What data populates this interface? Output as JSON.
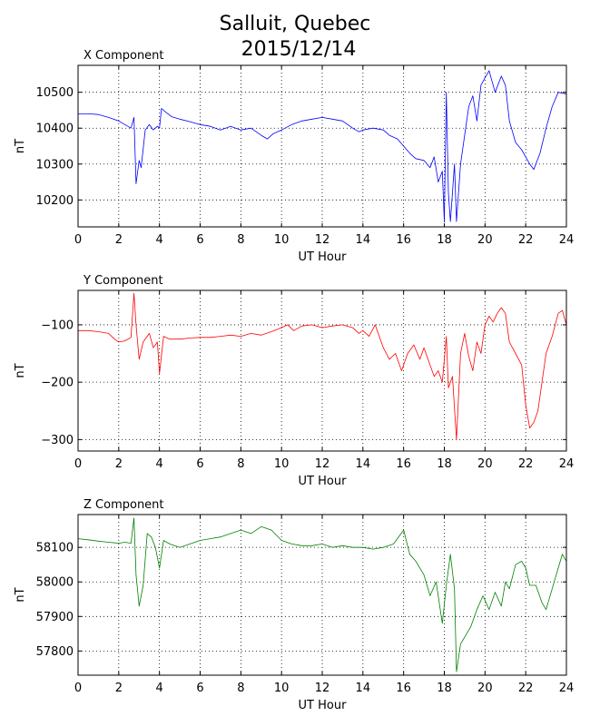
{
  "title_line1": "Salluit, Quebec",
  "title_line2": "2015/12/14",
  "chart_data": [
    {
      "type": "line",
      "panel_title": "X Component",
      "xlabel": "UT Hour",
      "ylabel": "nT",
      "xlim": [
        0,
        24
      ],
      "ylim": [
        10125,
        10575
      ],
      "xticks": [
        0,
        2,
        4,
        6,
        8,
        10,
        12,
        14,
        16,
        18,
        20,
        22,
        24
      ],
      "yticks": [
        10200,
        10300,
        10400,
        10500
      ],
      "grid": true,
      "color": "#0000ff",
      "x": [
        0,
        0.5,
        1.0,
        1.5,
        2.0,
        2.3,
        2.6,
        2.75,
        2.85,
        3.0,
        3.1,
        3.3,
        3.5,
        3.7,
        3.9,
        4.0,
        4.1,
        4.3,
        4.6,
        5.0,
        5.5,
        6.0,
        6.5,
        7.0,
        7.5,
        8.0,
        8.5,
        9.0,
        9.3,
        9.6,
        10.0,
        10.5,
        11.0,
        11.5,
        12.0,
        12.5,
        13.0,
        13.5,
        13.8,
        14.0,
        14.5,
        15.0,
        15.3,
        15.7,
        16.0,
        16.3,
        16.6,
        17.0,
        17.3,
        17.5,
        17.7,
        17.9,
        18.0,
        18.1,
        18.2,
        18.3,
        18.5,
        18.6,
        18.8,
        19.0,
        19.2,
        19.4,
        19.6,
        19.8,
        20.0,
        20.2,
        20.5,
        20.8,
        21.0,
        21.2,
        21.5,
        21.8,
        22.0,
        22.2,
        22.4,
        22.7,
        23.0,
        23.3,
        23.6,
        24.0
      ],
      "y": [
        10440,
        10440,
        10438,
        10430,
        10420,
        10410,
        10400,
        10430,
        10245,
        10310,
        10290,
        10395,
        10410,
        10395,
        10405,
        10400,
        10455,
        10445,
        10432,
        10425,
        10418,
        10410,
        10405,
        10395,
        10405,
        10395,
        10400,
        10380,
        10370,
        10385,
        10395,
        10410,
        10420,
        10425,
        10430,
        10425,
        10420,
        10400,
        10390,
        10395,
        10400,
        10395,
        10380,
        10370,
        10350,
        10330,
        10315,
        10310,
        10290,
        10320,
        10250,
        10280,
        10140,
        10500,
        10220,
        10140,
        10300,
        10140,
        10300,
        10380,
        10460,
        10490,
        10420,
        10520,
        10540,
        10560,
        10500,
        10545,
        10520,
        10420,
        10360,
        10340,
        10320,
        10300,
        10285,
        10330,
        10400,
        10460,
        10500,
        10495
      ]
    },
    {
      "type": "line",
      "panel_title": "Y Component",
      "xlabel": "UT Hour",
      "ylabel": "nT",
      "xlim": [
        0,
        24
      ],
      "ylim": [
        -320,
        -40
      ],
      "xticks": [
        0,
        2,
        4,
        6,
        8,
        10,
        12,
        14,
        16,
        18,
        20,
        22,
        24
      ],
      "yticks": [
        -300,
        -200,
        -100
      ],
      "grid": true,
      "color": "#ff0000",
      "x": [
        0,
        0.5,
        1.0,
        1.5,
        1.8,
        2.0,
        2.3,
        2.6,
        2.75,
        2.85,
        3.0,
        3.2,
        3.5,
        3.7,
        3.9,
        4.0,
        4.2,
        4.5,
        5.0,
        5.5,
        6.0,
        6.5,
        7.0,
        7.5,
        8.0,
        8.5,
        9.0,
        9.5,
        10.0,
        10.3,
        10.6,
        11.0,
        11.5,
        12.0,
        12.5,
        13.0,
        13.5,
        13.8,
        14.0,
        14.3,
        14.6,
        15.0,
        15.3,
        15.6,
        15.9,
        16.2,
        16.5,
        16.8,
        17.0,
        17.3,
        17.5,
        17.7,
        17.9,
        18.1,
        18.2,
        18.4,
        18.6,
        18.8,
        19.0,
        19.2,
        19.4,
        19.6,
        19.8,
        20.0,
        20.2,
        20.4,
        20.6,
        20.8,
        21.0,
        21.2,
        21.5,
        21.8,
        22.0,
        22.2,
        22.4,
        22.6,
        22.8,
        23.0,
        23.3,
        23.6,
        23.8,
        24.0
      ],
      "y": [
        -110,
        -110,
        -112,
        -115,
        -125,
        -130,
        -128,
        -122,
        -45,
        -100,
        -160,
        -130,
        -115,
        -140,
        -130,
        -185,
        -120,
        -125,
        -125,
        -123,
        -122,
        -122,
        -120,
        -118,
        -120,
        -115,
        -118,
        -112,
        -105,
        -100,
        -110,
        -102,
        -100,
        -105,
        -102,
        -100,
        -105,
        -115,
        -110,
        -120,
        -100,
        -140,
        -160,
        -150,
        -180,
        -150,
        -135,
        -160,
        -140,
        -170,
        -190,
        -180,
        -200,
        -120,
        -210,
        -190,
        -300,
        -150,
        -115,
        -155,
        -180,
        -130,
        -150,
        -100,
        -85,
        -95,
        -80,
        -70,
        -80,
        -130,
        -150,
        -170,
        -240,
        -280,
        -270,
        -250,
        -200,
        -150,
        -120,
        -80,
        -75,
        -100
      ]
    },
    {
      "type": "line",
      "panel_title": "Z Component",
      "xlabel": "UT Hour",
      "ylabel": "nT",
      "xlim": [
        0,
        24
      ],
      "ylim": [
        57730,
        58195
      ],
      "xticks": [
        0,
        2,
        4,
        6,
        8,
        10,
        12,
        14,
        16,
        18,
        20,
        22,
        24
      ],
      "yticks": [
        57800,
        57900,
        58000,
        58100
      ],
      "grid": true,
      "color": "#008000",
      "x": [
        0,
        0.5,
        1.0,
        1.5,
        2.0,
        2.3,
        2.6,
        2.75,
        2.85,
        3.0,
        3.2,
        3.4,
        3.6,
        3.8,
        4.0,
        4.2,
        4.5,
        5.0,
        5.5,
        6.0,
        6.5,
        7.0,
        7.5,
        8.0,
        8.5,
        9.0,
        9.5,
        10.0,
        10.5,
        11.0,
        11.5,
        12.0,
        12.5,
        13.0,
        13.5,
        14.0,
        14.5,
        15.0,
        15.5,
        16.0,
        16.3,
        16.6,
        17.0,
        17.3,
        17.6,
        17.9,
        18.1,
        18.3,
        18.5,
        18.6,
        18.8,
        19.0,
        19.3,
        19.6,
        19.9,
        20.2,
        20.5,
        20.8,
        21.0,
        21.2,
        21.5,
        21.8,
        22.0,
        22.2,
        22.5,
        22.8,
        23.0,
        23.3,
        23.6,
        23.8,
        24.0
      ],
      "y": [
        58125,
        58122,
        58118,
        58115,
        58112,
        58115,
        58112,
        58185,
        58020,
        57930,
        57990,
        58140,
        58130,
        58100,
        58040,
        58120,
        58110,
        58100,
        58110,
        58120,
        58125,
        58130,
        58140,
        58150,
        58140,
        58160,
        58150,
        58120,
        58110,
        58105,
        58105,
        58110,
        58100,
        58105,
        58100,
        58100,
        58095,
        58100,
        58110,
        58150,
        58080,
        58060,
        58020,
        57960,
        58000,
        57880,
        57990,
        58080,
        57980,
        57740,
        57820,
        57840,
        57870,
        57920,
        57960,
        57920,
        57970,
        57930,
        58000,
        57980,
        58050,
        58060,
        58040,
        57990,
        57990,
        57940,
        57920,
        57980,
        58040,
        58080,
        58060
      ]
    }
  ]
}
